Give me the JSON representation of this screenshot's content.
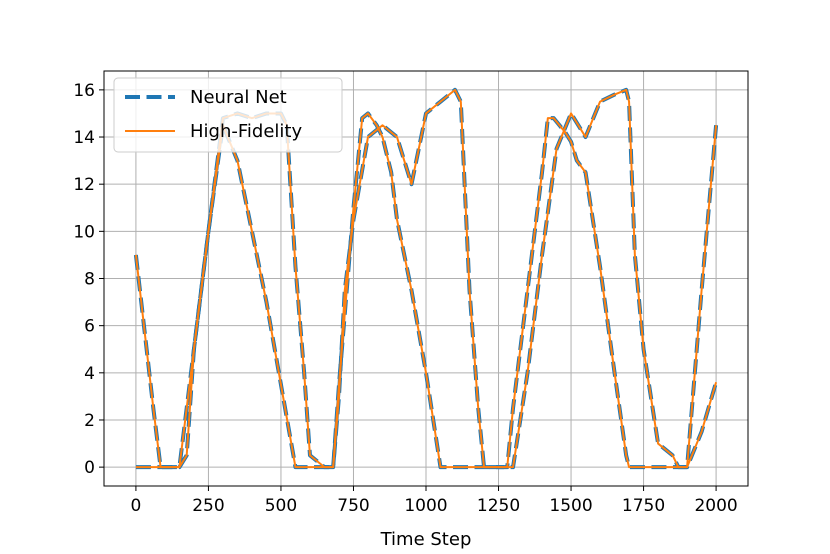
{
  "chart_data": {
    "type": "line",
    "title": "",
    "xlabel": "Time Step",
    "ylabel": "",
    "xlim": [
      -110,
      2110
    ],
    "ylim": [
      -0.8,
      16.8
    ],
    "xticks": [
      0,
      250,
      500,
      750,
      1000,
      1250,
      1500,
      1750,
      2000
    ],
    "yticks": [
      0,
      2,
      4,
      6,
      8,
      10,
      12,
      14,
      16
    ],
    "grid": true,
    "legend_position": "top-left",
    "colors": {
      "neural_net": "#1f77b4",
      "high_fidelity": "#ff7f0e"
    },
    "series": [
      {
        "name": "Neural Net",
        "style": "dashed",
        "color": "#1f77b4",
        "x": [
          0,
          60,
          85,
          100,
          150,
          200,
          250,
          300,
          350,
          400,
          450,
          500,
          550,
          580,
          600,
          650,
          670,
          680,
          700,
          750,
          780,
          800,
          830,
          850,
          880,
          900,
          950,
          1000,
          1050,
          1100,
          1110,
          1150,
          1180,
          1200,
          1250,
          1270,
          1280,
          1300,
          1350,
          1400,
          1420,
          1440,
          1480,
          1500,
          1520,
          1550,
          1600,
          1650,
          1690,
          1700,
          1750,
          1780,
          1800,
          1850,
          1860,
          1870,
          1900,
          1950,
          2000
        ],
        "y": [
          9.0,
          2.5,
          0.0,
          0.0,
          0.0,
          5.0,
          10.0,
          14.5,
          13.0,
          10.0,
          7.0,
          3.5,
          0.0,
          0.0,
          0.0,
          0.0,
          0.0,
          0.0,
          3.5,
          11.0,
          14.8,
          15.0,
          14.5,
          14.0,
          12.5,
          10.5,
          7.5,
          4.0,
          0.0,
          0.0,
          0.0,
          0.0,
          0.0,
          0.0,
          0.0,
          0.0,
          0.0,
          2.5,
          7.5,
          12.5,
          14.8,
          14.8,
          14.2,
          13.8,
          13.0,
          12.5,
          8.5,
          4.0,
          0.5,
          0.0,
          0.0,
          0.0,
          0.0,
          0.0,
          0.0,
          0.0,
          0.0,
          1.5,
          3.6
        ]
      },
      {
        "name": "Neural Net",
        "style": "dashed",
        "color": "#1f77b4",
        "x": [
          0,
          60,
          85,
          100,
          120,
          150,
          175,
          200,
          250,
          300,
          350,
          400,
          450,
          500,
          520,
          550,
          580,
          600,
          650,
          680,
          700,
          720,
          750,
          800,
          850,
          900,
          950,
          1000,
          1050,
          1100,
          1120,
          1150,
          1180,
          1200,
          1250,
          1280,
          1300,
          1350,
          1400,
          1450,
          1500,
          1550,
          1600,
          1650,
          1690,
          1700,
          1720,
          1750,
          1800,
          1850,
          1870,
          1900,
          1950,
          2000
        ],
        "y": [
          0.0,
          0.0,
          0.0,
          0.0,
          0.0,
          0.0,
          0.5,
          5.0,
          10.0,
          14.8,
          15.0,
          14.8,
          15.0,
          15.0,
          14.5,
          8.5,
          4.0,
          0.5,
          0.0,
          0.0,
          3.0,
          7.5,
          10.5,
          14.0,
          14.5,
          14.0,
          12.0,
          15.0,
          15.5,
          16.0,
          15.5,
          7.5,
          2.5,
          0.0,
          0.0,
          0.0,
          0.0,
          4.0,
          9.0,
          13.5,
          15.0,
          14.0,
          15.5,
          15.8,
          16.0,
          15.5,
          9.0,
          5.0,
          1.0,
          0.5,
          0.0,
          0.0,
          7.5,
          14.5
        ]
      },
      {
        "name": "High-Fidelity",
        "style": "solid",
        "color": "#ff7f0e",
        "x": [
          0,
          60,
          85,
          100,
          150,
          200,
          250,
          300,
          350,
          400,
          450,
          500,
          550,
          580,
          600,
          650,
          670,
          680,
          700,
          750,
          780,
          800,
          830,
          850,
          880,
          900,
          950,
          1000,
          1050,
          1100,
          1110,
          1150,
          1180,
          1200,
          1250,
          1270,
          1280,
          1300,
          1350,
          1400,
          1420,
          1440,
          1480,
          1500,
          1520,
          1550,
          1600,
          1650,
          1690,
          1700,
          1750,
          1780,
          1800,
          1850,
          1860,
          1870,
          1900,
          1950,
          2000
        ],
        "y": [
          9.0,
          2.5,
          0.0,
          0.0,
          0.0,
          5.0,
          10.0,
          14.5,
          13.0,
          10.0,
          7.0,
          3.5,
          0.0,
          0.0,
          0.0,
          0.0,
          0.0,
          0.0,
          3.5,
          11.0,
          14.8,
          15.0,
          14.5,
          14.0,
          12.5,
          10.5,
          7.5,
          4.0,
          0.0,
          0.0,
          0.0,
          0.0,
          0.0,
          0.0,
          0.0,
          0.0,
          0.0,
          2.5,
          7.5,
          12.5,
          14.8,
          14.8,
          14.2,
          13.8,
          13.0,
          12.5,
          8.5,
          4.0,
          0.5,
          0.0,
          0.0,
          0.0,
          0.0,
          0.0,
          0.0,
          0.0,
          0.0,
          1.5,
          3.6
        ]
      },
      {
        "name": "High-Fidelity",
        "style": "solid",
        "color": "#ff7f0e",
        "x": [
          0,
          60,
          85,
          100,
          120,
          150,
          175,
          200,
          250,
          300,
          350,
          400,
          450,
          500,
          520,
          550,
          580,
          600,
          650,
          680,
          700,
          720,
          750,
          800,
          850,
          900,
          950,
          1000,
          1050,
          1100,
          1120,
          1150,
          1180,
          1200,
          1250,
          1280,
          1300,
          1350,
          1400,
          1450,
          1500,
          1550,
          1600,
          1650,
          1690,
          1700,
          1720,
          1750,
          1800,
          1850,
          1870,
          1900,
          1950,
          2000
        ],
        "y": [
          0.0,
          0.0,
          0.0,
          0.0,
          0.0,
          0.0,
          0.5,
          5.0,
          10.0,
          14.8,
          15.0,
          14.8,
          15.0,
          15.0,
          14.5,
          8.5,
          4.0,
          0.5,
          0.0,
          0.0,
          3.0,
          7.5,
          10.5,
          14.0,
          14.5,
          14.0,
          12.0,
          15.0,
          15.5,
          16.0,
          15.5,
          7.5,
          2.5,
          0.0,
          0.0,
          0.0,
          0.0,
          4.0,
          9.0,
          13.5,
          15.0,
          14.0,
          15.5,
          15.8,
          16.0,
          15.5,
          9.0,
          5.0,
          1.0,
          0.5,
          0.0,
          0.0,
          7.5,
          14.5
        ]
      }
    ],
    "legend": [
      {
        "label": "Neural Net",
        "style": "dashed",
        "color": "#1f77b4"
      },
      {
        "label": "High-Fidelity",
        "style": "solid",
        "color": "#ff7f0e"
      }
    ]
  }
}
